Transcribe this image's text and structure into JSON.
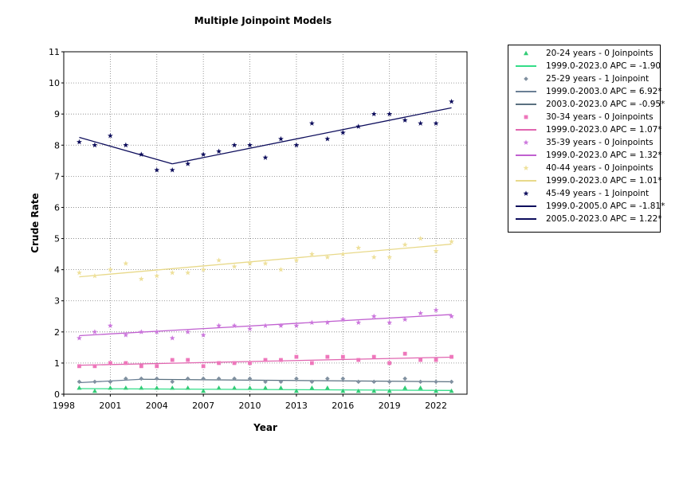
{
  "chart_data": {
    "type": "line",
    "title": "Multiple Joinpoint Models",
    "xlabel": "Year",
    "ylabel": "Crude Rate",
    "xlim": [
      1998,
      2024
    ],
    "ylim": [
      0,
      11
    ],
    "x_ticks": [
      1998,
      2001,
      2004,
      2007,
      2010,
      2013,
      2016,
      2019,
      2022
    ],
    "y_ticks": [
      0,
      1,
      2,
      3,
      4,
      5,
      6,
      7,
      8,
      9,
      10,
      11
    ],
    "grid": true,
    "legend_position": "right",
    "x": [
      1999,
      2000,
      2001,
      2002,
      2003,
      2004,
      2005,
      2006,
      2007,
      2008,
      2009,
      2010,
      2011,
      2012,
      2013,
      2014,
      2015,
      2016,
      2017,
      2018,
      2019,
      2020,
      2021,
      2022,
      2023
    ],
    "series": [
      {
        "name": "20-24 years - 0 Joinpoints",
        "color": "#33cc77",
        "marker": "triangle",
        "values": [
          0.2,
          0.1,
          0.2,
          0.2,
          0.2,
          0.2,
          0.2,
          0.2,
          0.1,
          0.2,
          0.2,
          0.2,
          0.2,
          0.2,
          0.1,
          0.2,
          0.2,
          0.1,
          0.1,
          0.1,
          0.1,
          0.2,
          0.2,
          0.1,
          0.1
        ],
        "fits": [
          {
            "label": "1999.0-2023.0 APC  = -1.90",
            "x": [
              1999,
              2023
            ],
            "y": [
              0.18,
              0.12
            ],
            "color": "#33dd88"
          }
        ]
      },
      {
        "name": "25-29 years - 1 Joinpoint",
        "color": "#8090a0",
        "marker": "diamond",
        "values": [
          0.4,
          0.4,
          0.4,
          0.5,
          0.5,
          0.5,
          0.4,
          0.5,
          0.5,
          0.5,
          0.5,
          0.5,
          0.4,
          0.4,
          0.5,
          0.4,
          0.5,
          0.5,
          0.4,
          0.4,
          0.4,
          0.5,
          0.4,
          0.4,
          0.4
        ],
        "fits": [
          {
            "label": "1999.0-2003.0 APC  =  6.92*",
            "x": [
              1999,
              2003
            ],
            "y": [
              0.37,
              0.48
            ],
            "color": "#6a7f95"
          },
          {
            "label": "2003.0-2023.0 APC  = -0.95*",
            "x": [
              2003,
              2023
            ],
            "y": [
              0.48,
              0.4
            ],
            "color": "#5a7080"
          }
        ]
      },
      {
        "name": "30-34 years - 0 Joinpoints",
        "color": "#ee77bb",
        "marker": "square",
        "values": [
          0.9,
          0.9,
          1.0,
          1.0,
          0.9,
          0.9,
          1.1,
          1.1,
          0.9,
          1.0,
          1.0,
          1.0,
          1.1,
          1.1,
          1.2,
          1.0,
          1.2,
          1.2,
          1.1,
          1.2,
          1.0,
          1.3,
          1.1,
          1.1,
          1.2
        ],
        "fits": [
          {
            "label": "1999.0-2023.0 APC  = 1.07*",
            "x": [
              1999,
              2023
            ],
            "y": [
              0.93,
              1.19
            ],
            "color": "#e066b0"
          }
        ]
      },
      {
        "name": "35-39 years - 0 Joinpoints",
        "color": "#cc77dd",
        "marker": "star",
        "values": [
          1.8,
          2.0,
          2.2,
          1.9,
          2.0,
          2.0,
          1.8,
          2.0,
          1.9,
          2.2,
          2.2,
          2.1,
          2.2,
          2.2,
          2.2,
          2.3,
          2.3,
          2.4,
          2.3,
          2.5,
          2.3,
          2.4,
          2.6,
          2.7,
          2.5
        ],
        "fits": [
          {
            "label": "1999.0-2023.0 APC  = 1.32*",
            "x": [
              1999,
              2023
            ],
            "y": [
              1.88,
              2.56
            ],
            "color": "#c060d0"
          }
        ]
      },
      {
        "name": "40-44 years - 0 Joinpoints",
        "color": "#eee09a",
        "marker": "star",
        "values": [
          3.9,
          3.8,
          4.0,
          4.2,
          3.7,
          3.8,
          3.9,
          3.9,
          4.0,
          4.3,
          4.1,
          4.2,
          4.2,
          4.0,
          4.3,
          4.5,
          4.4,
          4.5,
          4.7,
          4.4,
          4.4,
          4.8,
          5.0,
          4.6,
          4.9
        ],
        "fits": [
          {
            "label": "1999.0-2023.0 APC  = 1.01*",
            "x": [
              1999,
              2023
            ],
            "y": [
              3.77,
              4.82
            ],
            "color": "#e8d98a"
          }
        ]
      },
      {
        "name": "45-49 years - 1 Joinpoint",
        "color": "#0d0d5c",
        "marker": "star",
        "values": [
          8.1,
          8.0,
          8.3,
          8.0,
          7.7,
          7.2,
          7.2,
          7.4,
          7.7,
          7.8,
          8.0,
          8.0,
          7.6,
          8.2,
          8.0,
          8.7,
          8.2,
          8.4,
          8.6,
          9.0,
          9.0,
          8.8,
          8.7,
          8.7,
          9.4
        ],
        "fits": [
          {
            "label": "1999.0-2005.0 APC  = -1.81*",
            "x": [
              1999,
              2005
            ],
            "y": [
              8.25,
              7.4
            ],
            "color": "#0d0d5c"
          },
          {
            "label": "2005.0-2023.0 APC  =  1.22*",
            "x": [
              2005,
              2023
            ],
            "y": [
              7.4,
              9.2
            ],
            "color": "#0d0d5c"
          }
        ]
      }
    ]
  }
}
